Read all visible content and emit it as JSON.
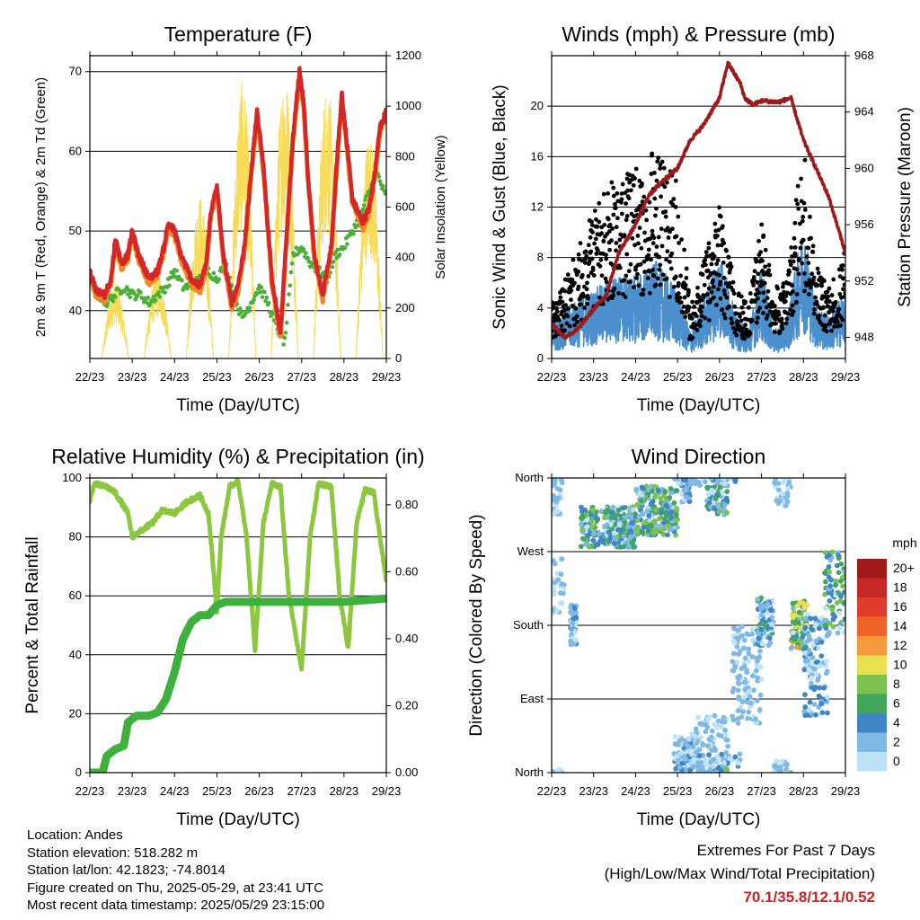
{
  "footer": {
    "location": "Location: Andes",
    "elevation": "Station elevation: 518.282 m",
    "latlon": "Station lat/lon: 42.1823; -74.8014",
    "created": "Figure created on Thu, 2025-05-29, at 23:41 UTC",
    "recent": "Most recent data timestamp: 2025/05/29 23:15:00",
    "extremes_title": "Extremes For Past 7 Days",
    "extremes_sub": "(High/Low/Max Wind/Total Precipitation)",
    "extremes_values": "70.1/35.8/12.1/0.52"
  },
  "chart_data": [
    {
      "id": "temp",
      "type": "line",
      "title": "Temperature (F)",
      "xlabel": "Time (Day/UTC)",
      "ylabel": "2m & 9m T (Red, Orange) & 2m Td (Green)",
      "y2label": "Solar Insolation (Yellow)",
      "xticks": [
        "22/23",
        "23/23",
        "24/23",
        "25/23",
        "26/23",
        "27/23",
        "28/23",
        "29/23"
      ],
      "xlim": [
        0,
        7
      ],
      "ylim": [
        34,
        72
      ],
      "yticks": [
        40,
        50,
        60,
        70
      ],
      "y2lim": [
        0,
        1200
      ],
      "y2ticks": [
        0,
        200,
        400,
        600,
        800,
        1000,
        1200
      ],
      "colors": {
        "t2m": "#d62728",
        "t9m": "#f08a24",
        "td": "#4caf3a",
        "solar": "#f7dc5a"
      },
      "series": [
        {
          "key": "t2m",
          "x": [
            0,
            0.15,
            0.35,
            0.5,
            0.6,
            0.75,
            0.9,
            1.0,
            1.15,
            1.4,
            1.6,
            1.75,
            1.85,
            2.0,
            2.15,
            2.4,
            2.6,
            2.75,
            2.85,
            3.0,
            3.15,
            3.35,
            3.5,
            3.65,
            3.8,
            3.95,
            4.1,
            4.3,
            4.5,
            4.65,
            4.8,
            4.95,
            5.05,
            5.15,
            5.3,
            5.5,
            5.7,
            5.85,
            5.95,
            6.05,
            6.2,
            6.45,
            6.6,
            6.75,
            6.85,
            7.0
          ],
          "y": [
            45,
            42.5,
            42,
            44,
            49,
            46,
            47,
            50,
            47,
            44,
            45,
            48,
            51,
            50,
            47,
            44,
            43,
            46,
            52,
            56,
            47,
            41,
            43,
            48,
            57,
            65,
            58,
            44,
            37,
            50,
            62,
            70,
            66,
            57,
            47,
            42,
            48,
            60,
            67,
            62,
            54,
            51,
            53,
            58,
            63,
            65
          ]
        },
        {
          "key": "td",
          "x": [
            0,
            0.2,
            0.4,
            0.6,
            0.8,
            1.0,
            1.2,
            1.4,
            1.6,
            1.8,
            2.0,
            2.2,
            2.4,
            2.6,
            2.8,
            3.0,
            3.2,
            3.4,
            3.6,
            3.8,
            4.0,
            4.2,
            4.4,
            4.6,
            4.8,
            5.0,
            5.2,
            5.4,
            5.6,
            5.8,
            6.0,
            6.2,
            6.4,
            6.6,
            6.8,
            7.0
          ],
          "y": [
            44,
            42,
            41,
            42,
            43,
            42,
            42,
            41,
            42,
            43,
            45,
            43,
            43,
            44,
            45,
            44,
            46,
            42,
            39,
            41,
            43,
            41,
            38,
            36,
            47,
            48,
            46,
            45,
            44,
            47,
            48,
            50,
            52,
            55,
            57,
            54
          ]
        },
        {
          "key": "solar",
          "peaks": [
            [
              0.6,
              300
            ],
            [
              1.6,
              350
            ],
            [
              2.6,
              650
            ],
            [
              3.6,
              1100
            ],
            [
              4.6,
              1150
            ],
            [
              5.6,
              1100
            ],
            [
              6.6,
              900
            ]
          ]
        }
      ]
    },
    {
      "id": "winds",
      "type": "scatter",
      "title": "Winds (mph) & Pressure (mb)",
      "xlabel": "Time (Day/UTC)",
      "ylabel": "Sonic Wind & Gust (Blue, Black)",
      "y2label": "Station Pressure (Maroon)",
      "xticks": [
        "22/23",
        "23/23",
        "24/23",
        "25/23",
        "26/23",
        "27/23",
        "28/23",
        "29/23"
      ],
      "xlim": [
        0,
        7
      ],
      "ylim": [
        0,
        24
      ],
      "yticks": [
        0,
        4,
        8,
        12,
        16,
        20
      ],
      "y2lim": [
        946.5,
        968
      ],
      "y2ticks": [
        948,
        952,
        956,
        960,
        964,
        968
      ],
      "colors": {
        "wind": "#4b8fcc",
        "gust": "#000000",
        "pressure": "#9e1a1a"
      },
      "series": [
        {
          "key": "pressure",
          "x": [
            0,
            0.3,
            0.6,
            1.0,
            1.3,
            1.6,
            2.0,
            2.3,
            2.6,
            3.0,
            3.3,
            3.6,
            4.0,
            4.2,
            4.5,
            4.6,
            4.8,
            5.0,
            5.4,
            5.7,
            6.0,
            6.3,
            6.6,
            6.8,
            7.0
          ],
          "y": [
            949,
            948,
            948.5,
            950,
            951,
            954,
            956,
            958,
            959,
            960,
            962,
            963,
            965,
            967.5,
            966,
            965,
            964.5,
            964.8,
            964.7,
            965,
            962,
            960,
            958,
            956,
            954
          ]
        },
        {
          "key": "wind_level",
          "x": [
            0,
            0.5,
            1.0,
            1.5,
            2.0,
            2.5,
            3.0,
            3.3,
            3.6,
            4.0,
            4.4,
            4.7,
            5.0,
            5.3,
            5.6,
            6.0,
            6.3,
            6.6,
            7.0
          ],
          "y": [
            3,
            4,
            5,
            6,
            6,
            7,
            5,
            2,
            4,
            8,
            3,
            2,
            7,
            2,
            3,
            10,
            4,
            3,
            5
          ]
        },
        {
          "key": "gust_level",
          "x": [
            0,
            0.5,
            1.0,
            1.5,
            2.0,
            2.5,
            3.0,
            3.3,
            3.6,
            4.0,
            4.4,
            4.7,
            5.0,
            5.3,
            5.6,
            6.0,
            6.3,
            6.6,
            7.0
          ],
          "y": [
            4,
            7,
            11,
            13,
            14,
            15,
            13,
            4,
            7,
            11,
            5,
            4,
            10,
            5,
            6,
            16,
            7,
            5,
            8
          ]
        }
      ]
    },
    {
      "id": "rh",
      "type": "line",
      "title": "Relative Humidity (%) & Precipitation (in)",
      "xlabel": "Time (Day/UTC)",
      "ylabel": "Percent & Total Rainfall",
      "xticks": [
        "22/23",
        "23/23",
        "24/23",
        "25/23",
        "26/23",
        "27/23",
        "28/23",
        "29/23"
      ],
      "xlim": [
        0,
        7
      ],
      "ylim": [
        0,
        100
      ],
      "yticks": [
        0,
        20,
        40,
        60,
        80,
        100
      ],
      "y2lim": [
        0,
        0.88
      ],
      "y2ticks": [
        "0.00",
        "0.20",
        "0.40",
        "0.60",
        "0.80"
      ],
      "colors": {
        "rh": "#8dc63f",
        "precip": "#3db03d"
      },
      "series": [
        {
          "key": "rh",
          "x": [
            0,
            0.1,
            0.4,
            0.6,
            0.9,
            1.0,
            1.2,
            1.5,
            1.7,
            2.0,
            2.3,
            2.6,
            2.8,
            2.9,
            3.0,
            3.1,
            3.3,
            3.5,
            3.7,
            3.9,
            4.1,
            4.3,
            4.5,
            4.7,
            5.0,
            5.2,
            5.4,
            5.7,
            5.9,
            6.1,
            6.3,
            6.5,
            6.7,
            6.9,
            7.0
          ],
          "y": [
            92,
            98,
            97,
            95,
            88,
            80,
            82,
            85,
            89,
            88,
            92,
            94,
            88,
            72,
            55,
            80,
            97,
            99,
            80,
            42,
            85,
            98,
            97,
            60,
            35,
            80,
            98,
            97,
            60,
            42,
            85,
            96,
            95,
            75,
            65
          ]
        },
        {
          "key": "precip",
          "x": [
            0,
            0.3,
            0.4,
            0.6,
            0.8,
            0.9,
            1.1,
            1.4,
            1.6,
            1.8,
            2.0,
            2.2,
            2.4,
            2.6,
            2.8,
            3.0,
            3.2,
            3.5,
            4.0,
            5.0,
            6.0,
            7.0
          ],
          "y": [
            0,
            0,
            0.05,
            0.07,
            0.08,
            0.15,
            0.17,
            0.17,
            0.18,
            0.22,
            0.3,
            0.4,
            0.45,
            0.47,
            0.47,
            0.5,
            0.51,
            0.51,
            0.51,
            0.51,
            0.51,
            0.52
          ]
        }
      ]
    },
    {
      "id": "wdir",
      "type": "scatter",
      "title": "Wind Direction",
      "xlabel": "Time (Day/UTC)",
      "ylabel": "Direction (Colored By Speed)",
      "xticks": [
        "22/23",
        "23/23",
        "24/23",
        "25/23",
        "26/23",
        "27/23",
        "28/23",
        "29/23"
      ],
      "xlim": [
        0,
        7
      ],
      "ylim": [
        0,
        360
      ],
      "yticks": [
        "North",
        "East",
        "South",
        "West",
        "North"
      ],
      "legend_title": "mph",
      "legend_labels": [
        "20+",
        "18",
        "16",
        "14",
        "12",
        "10",
        "8",
        "6",
        "4",
        "2",
        "0"
      ],
      "legend_colors": [
        "#a01a1a",
        "#c62828",
        "#e03c2c",
        "#f0642a",
        "#f59a3c",
        "#e8e050",
        "#7cc250",
        "#44a65a",
        "#3f86c4",
        "#7fb9e4",
        "#bfe3f6"
      ]
    }
  ]
}
